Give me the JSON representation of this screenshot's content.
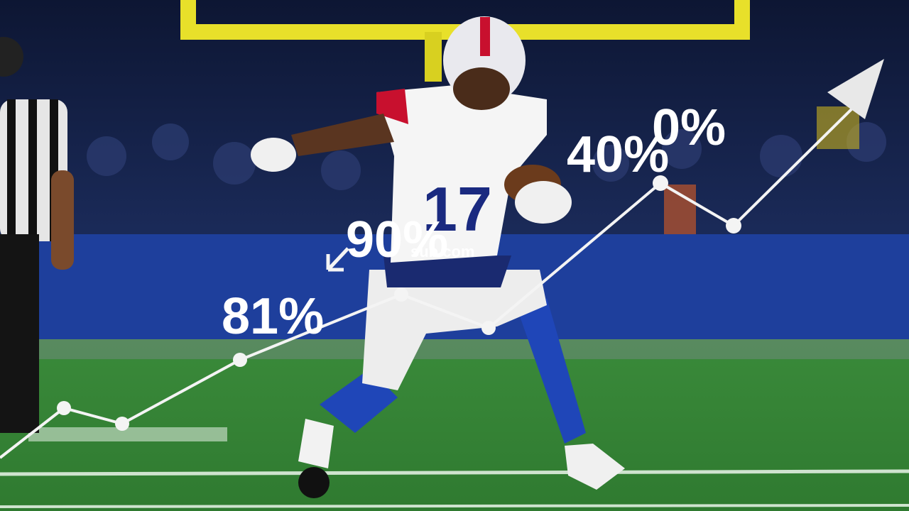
{
  "overlay": {
    "labels": [
      "81%",
      "90%",
      "sub com",
      "40%",
      "0%"
    ]
  }
}
